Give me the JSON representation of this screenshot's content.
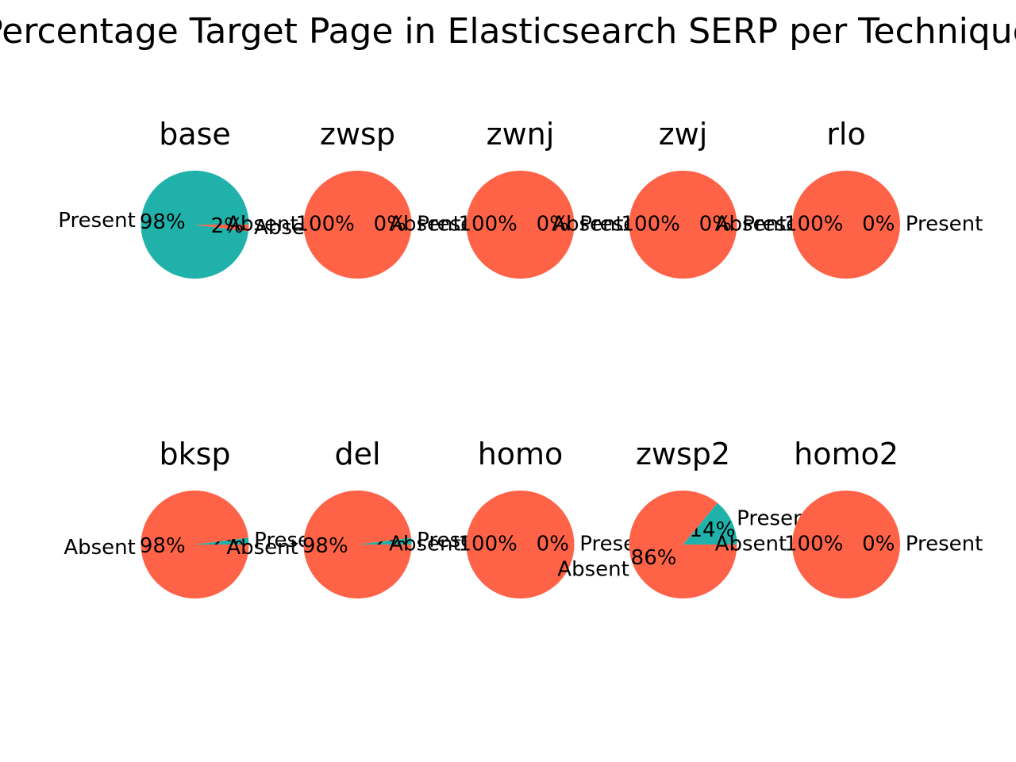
{
  "title": "Percentage Target Page in Elasticsearch SERP per Technique",
  "colors": {
    "present": "#20b2aa",
    "absent": "#ff6347"
  },
  "chart_data": [
    {
      "type": "pie",
      "title": "base",
      "labels": [
        "Present",
        "Absent"
      ],
      "values": [
        98,
        2
      ],
      "pct_labels": [
        "98%",
        "2%"
      ]
    },
    {
      "type": "pie",
      "title": "zwsp",
      "labels": [
        "Absent",
        "Present"
      ],
      "values": [
        100,
        0
      ],
      "pct_labels": [
        "100%",
        "0%"
      ]
    },
    {
      "type": "pie",
      "title": "zwnj",
      "labels": [
        "Absent",
        "Present"
      ],
      "values": [
        100,
        0
      ],
      "pct_labels": [
        "100%",
        "0%"
      ]
    },
    {
      "type": "pie",
      "title": "zwj",
      "labels": [
        "Absent",
        "Present"
      ],
      "values": [
        100,
        0
      ],
      "pct_labels": [
        "100%",
        "0%"
      ]
    },
    {
      "type": "pie",
      "title": "rlo",
      "labels": [
        "Absent",
        "Present"
      ],
      "values": [
        100,
        0
      ],
      "pct_labels": [
        "100%",
        "0%"
      ]
    },
    {
      "type": "pie",
      "title": "bksp",
      "labels": [
        "Present",
        "Absent"
      ],
      "values": [
        2,
        98
      ],
      "pct_labels": [
        "2%",
        "98%"
      ]
    },
    {
      "type": "pie",
      "title": "del",
      "labels": [
        "Present",
        "Absent"
      ],
      "values": [
        2,
        98
      ],
      "pct_labels": [
        "2%",
        "98%"
      ]
    },
    {
      "type": "pie",
      "title": "homo",
      "labels": [
        "Absent",
        "Present"
      ],
      "values": [
        100,
        0
      ],
      "pct_labels": [
        "100%",
        "0%"
      ]
    },
    {
      "type": "pie",
      "title": "zwsp2",
      "labels": [
        "Present",
        "Absent"
      ],
      "values": [
        14,
        86
      ],
      "pct_labels": [
        "14%",
        "86%"
      ]
    },
    {
      "type": "pie",
      "title": "homo2",
      "labels": [
        "Absent",
        "Present"
      ],
      "values": [
        100,
        0
      ],
      "pct_labels": [
        "100%",
        "0%"
      ]
    }
  ]
}
